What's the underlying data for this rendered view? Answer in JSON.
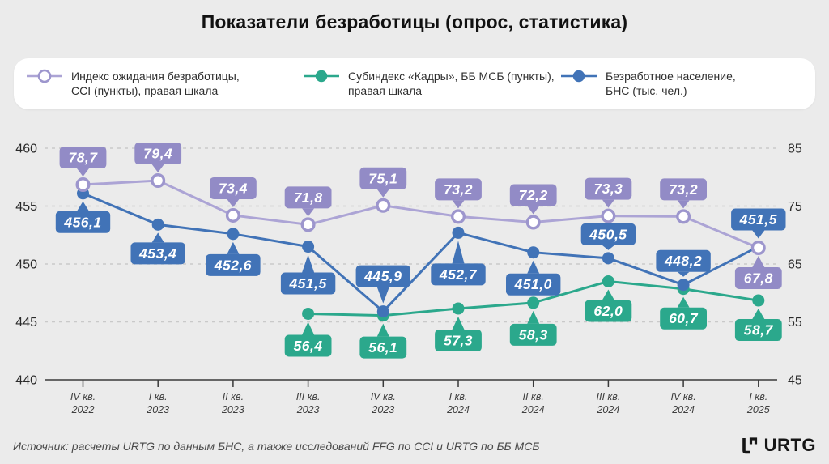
{
  "title": "Показатели безработицы (опрос, статистика)",
  "legend": {
    "items": [
      {
        "label": "Индекс ожидания безработицы,\nCCI (пункты), правая шкала",
        "marker": "open-circle",
        "color": "#9d96cd"
      },
      {
        "label": "Субиндекс «Кадры», ББ МСБ (пункты),\nправая шкала",
        "marker": "filled-circle",
        "color": "#2ba88c"
      },
      {
        "label": "Безработное население,\nБНС (тыс. чел.)",
        "marker": "filled-circle",
        "color": "#4173b7"
      }
    ]
  },
  "chart_data": {
    "type": "line",
    "title": "Показатели безработицы (опрос, статистика)",
    "categories": [
      "IV кв. 2022",
      "I кв. 2023",
      "II кв. 2023",
      "III кв. 2023",
      "IV кв. 2023",
      "I кв. 2024",
      "II кв. 2024",
      "III кв. 2024",
      "IV кв. 2024",
      "I кв. 2025"
    ],
    "left_axis": {
      "range": [
        440,
        460
      ],
      "ticks": [
        440,
        445,
        450,
        455,
        460
      ]
    },
    "right_axis": {
      "range": [
        45,
        85
      ],
      "ticks": [
        45,
        55,
        65,
        75,
        85
      ]
    },
    "grid": "horizontal-dashed",
    "legend_position": "top",
    "series": [
      {
        "name": "Субиндекс «Кадры», ББ МСБ (пункты), правая шкала",
        "axis": "right",
        "marker": "filled",
        "color": "#2ba88c",
        "box_color": "#2ba88c",
        "values": [
          null,
          null,
          null,
          56.4,
          56.1,
          57.3,
          58.3,
          62.0,
          60.7,
          58.7
        ],
        "labels": [
          null,
          null,
          null,
          "56,4",
          "56,1",
          "57,3",
          "58,3",
          "62,0",
          "60,7",
          "58,7"
        ],
        "label_side": [
          null,
          null,
          null,
          "below",
          "below",
          "below",
          "below",
          "below",
          "below",
          "below"
        ],
        "label_gap": [
          null,
          null,
          null,
          26,
          26,
          26,
          26,
          23,
          23,
          23
        ]
      },
      {
        "name": "Безработное население, БНС (тыс. чел.)",
        "axis": "left",
        "marker": "filled",
        "color": "#4173b7",
        "box_color": "#4173b7",
        "values": [
          456.1,
          453.4,
          452.6,
          451.5,
          445.9,
          452.7,
          451.0,
          450.5,
          448.2,
          451.5
        ],
        "labels": [
          "456,1",
          "453,4",
          "452,6",
          "451,5",
          "445,9",
          "452,7",
          "451,0",
          "450,5",
          "448,2",
          "451,5"
        ],
        "label_side": [
          "below",
          "below",
          "below",
          "below",
          "above",
          "below",
          "below",
          "above",
          "above",
          "above"
        ],
        "label_gap": [
          22,
          22,
          25,
          32,
          30,
          38,
          26,
          16,
          16,
          20
        ]
      },
      {
        "name": "Индекс ожидания безработицы, CCI (пункты), правая шкала",
        "axis": "right",
        "marker": "open",
        "color": "#aca4d5",
        "box_color": "#928bc6",
        "marker_stroke": "#9d96cd",
        "values": [
          78.7,
          79.4,
          73.4,
          71.8,
          75.1,
          73.2,
          72.2,
          73.3,
          73.2,
          67.8
        ],
        "labels": [
          "78,7",
          "79,4",
          "73,4",
          "71,8",
          "75,1",
          "73,2",
          "72,2",
          "73,3",
          "73,2",
          "67,8"
        ],
        "label_side": [
          "above",
          "above",
          "above",
          "above",
          "above",
          "above",
          "above",
          "above",
          "above",
          "below"
        ],
        "label_gap": [
          20,
          20,
          20,
          20,
          20,
          20,
          20,
          20,
          20,
          24
        ]
      }
    ]
  },
  "source": "Источник: расчеты URTG по данным БНС, а также исследований FFG по CCI и URTG по ББ МСБ",
  "logo_text": "URTG",
  "colors": {
    "background": "#ebebeb",
    "grid": "#c9c9c9",
    "axis": "#3a3a3a",
    "tick_text": "#2a2a2a",
    "category_text": "#3f3f3f",
    "label_text": "#ffffff"
  }
}
